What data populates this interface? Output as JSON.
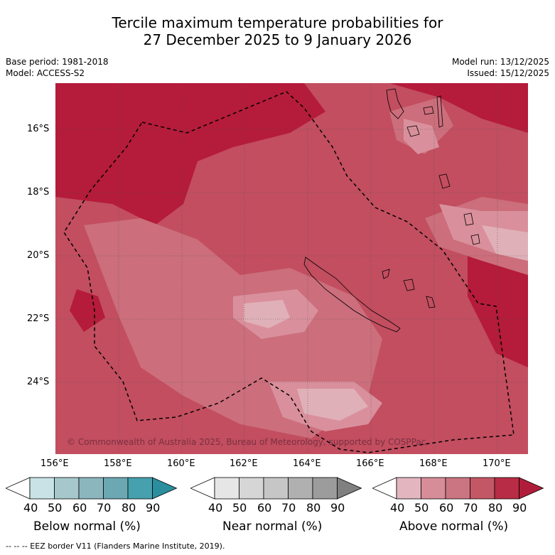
{
  "title": {
    "line1": "Tercile maximum temperature probabilities for",
    "line2": "27 December 2025 to 9 January 2026"
  },
  "meta": {
    "base_period": "Base period: 1981-2018",
    "model": "Model: ACCESS-S2",
    "model_run": "Model run: 13/12/2025",
    "issued": "Issued: 15/12/2025"
  },
  "map": {
    "copyright": "© Commonwealth of Australia 2025, Bureau of Meteorology, supported by COSPPac",
    "lat_ticks": [
      "16°S",
      "18°S",
      "20°S",
      "22°S",
      "24°S"
    ],
    "lon_ticks": [
      "156°E",
      "158°E",
      "160°E",
      "162°E",
      "164°E",
      "166°E",
      "168°E",
      "170°E"
    ]
  },
  "legend": {
    "below": {
      "label": "Below normal (%)",
      "colors": [
        "#ffffff",
        "#c9e2e6",
        "#a6c8cd",
        "#8bb6be",
        "#6ca8b2",
        "#46a0ae",
        "#2a8e9e"
      ]
    },
    "near": {
      "label": "Near normal (%)",
      "colors": [
        "#ffffff",
        "#e6e6e6",
        "#d6d6d6",
        "#c6c6c6",
        "#b0b0b0",
        "#9c9c9c",
        "#808080"
      ]
    },
    "above": {
      "label": "Above normal (%)",
      "colors": [
        "#ffffff",
        "#e3b6bf",
        "#d78d98",
        "#cb7582",
        "#c45765",
        "#b82c45",
        "#b01d3a"
      ]
    },
    "ticks": [
      "40",
      "50",
      "60",
      "70",
      "80",
      "90"
    ]
  },
  "colors": {
    "p50": "#e0b0b8",
    "p60": "#d9909c",
    "p70": "#cc6e7c",
    "p80": "#c24e60",
    "p90": "#b51b3a"
  },
  "footer": "--  --  -- EEZ border V11 (Flanders Marine Institute, 2019)."
}
